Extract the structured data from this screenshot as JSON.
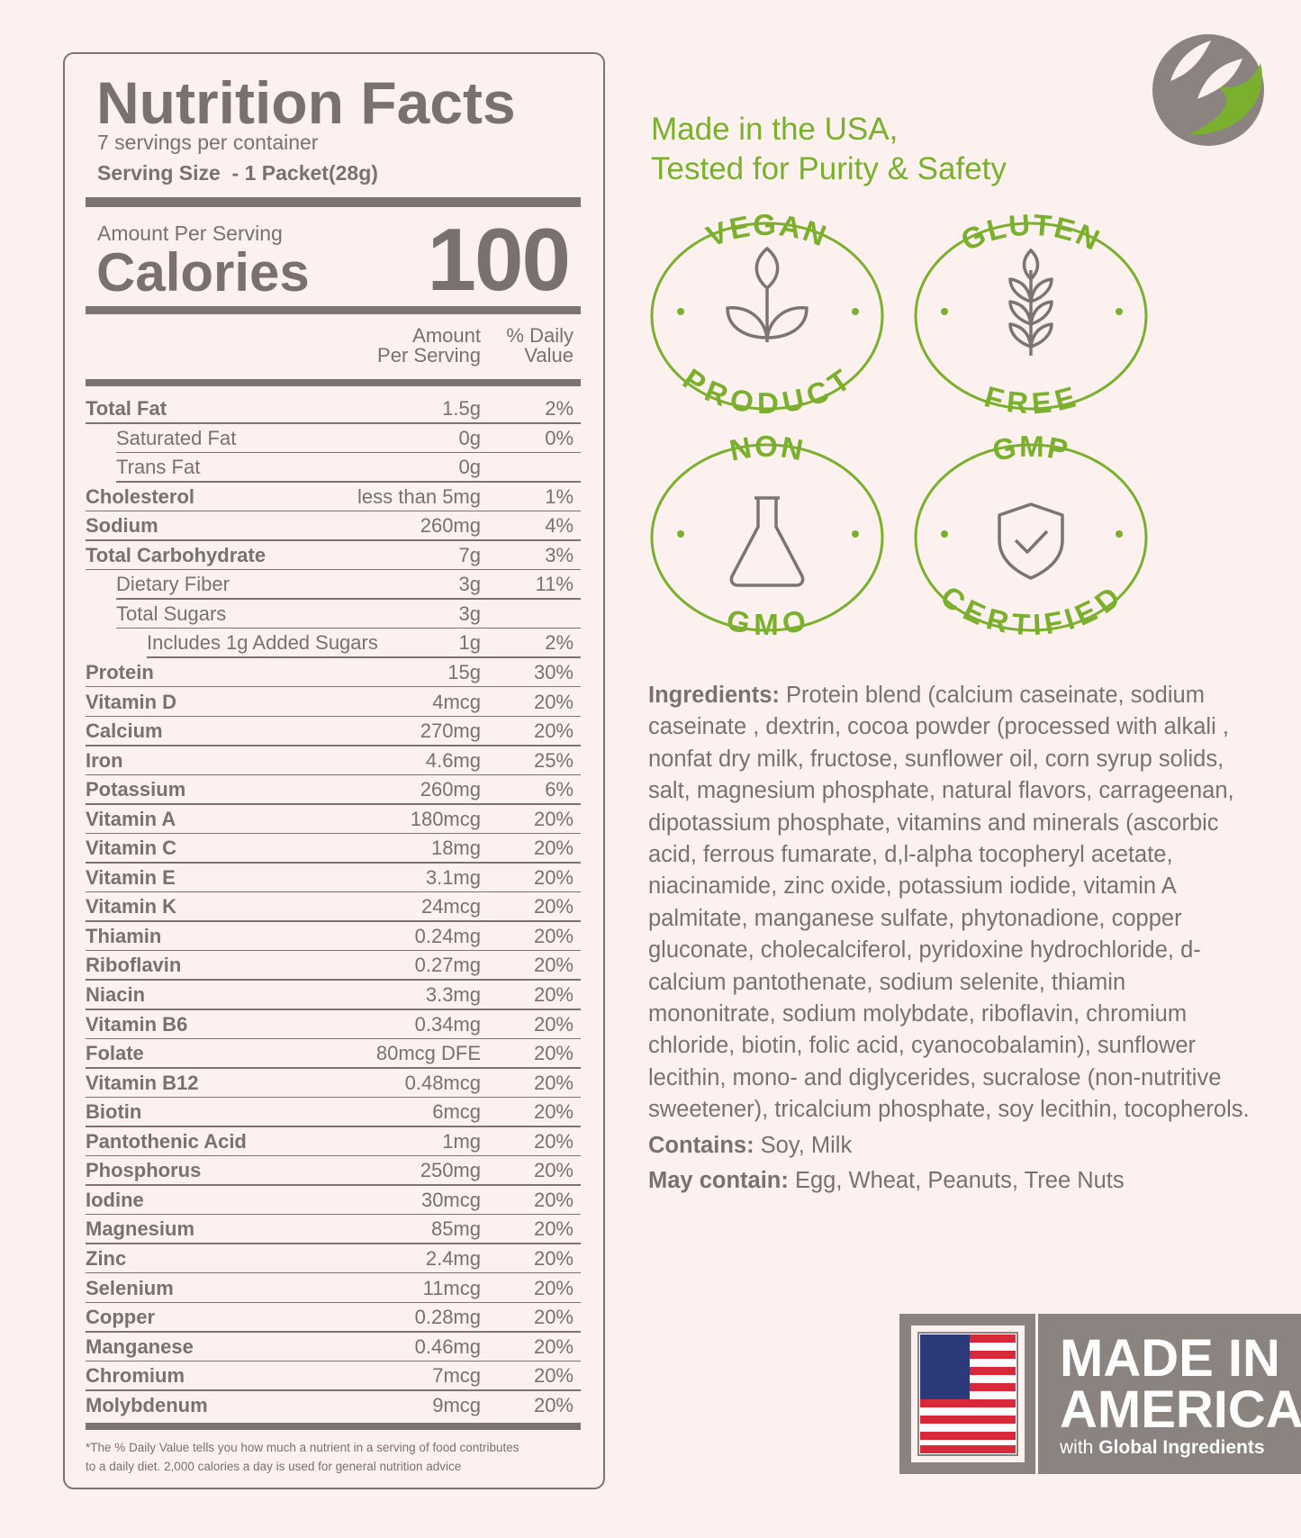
{
  "header": {
    "title": "Nutrition Facts",
    "servings": "7 servings per container",
    "serving_size": "Serving Size  - 1 Packet(28g)",
    "amount_per_serving": "Amount Per Serving",
    "calories_label": "Calories",
    "calories": "100"
  },
  "columns": {
    "amount": [
      "Amount",
      "Per Serving"
    ],
    "dv": [
      "% Daily",
      "Value"
    ]
  },
  "rows": [
    [
      "Total Fat",
      "1.5g",
      "2%"
    ],
    [
      "Saturated Fat",
      "0g",
      "0%"
    ],
    [
      "Trans Fat",
      "0g",
      ""
    ],
    [
      "Cholesterol",
      "less than 5mg",
      "1%"
    ],
    [
      "Sodium",
      "260mg",
      "4%"
    ],
    [
      "Total Carbohydrate",
      "7g",
      "3%"
    ],
    [
      "Dietary Fiber",
      "3g",
      "11%"
    ],
    [
      "Total Sugars",
      "3g",
      ""
    ],
    [
      "Includes 1g Added Sugars",
      "1g",
      "2%"
    ],
    [
      "Protein",
      "15g",
      "30%"
    ],
    [
      "Vitamin D",
      "4mcg",
      "20%"
    ],
    [
      "Calcium",
      "270mg",
      "20%"
    ],
    [
      "Iron",
      "4.6mg",
      "25%"
    ],
    [
      "Potassium",
      "260mg",
      "6%"
    ],
    [
      "Vitamin A",
      "180mcg",
      "20%"
    ],
    [
      "Vitamin C",
      "18mg",
      "20%"
    ],
    [
      "Vitamin E",
      "3.1mg",
      "20%"
    ],
    [
      "Vitamin K",
      "24mcg",
      "20%"
    ],
    [
      "Thiamin",
      "0.24mg",
      "20%"
    ],
    [
      "Riboflavin",
      "0.27mg",
      "20%"
    ],
    [
      "Niacin",
      "3.3mg",
      "20%"
    ],
    [
      "Vitamin B6",
      "0.34mg",
      "20%"
    ],
    [
      "Folate",
      "80mcg DFE",
      "20%"
    ],
    [
      "Vitamin B12",
      "0.48mcg",
      "20%"
    ],
    [
      "Biotin",
      "6mcg",
      "20%"
    ],
    [
      "Pantothenic Acid",
      "1mg",
      "20%"
    ],
    [
      "Phosphorus",
      "250mg",
      "20%"
    ],
    [
      "Iodine",
      "30mcg",
      "20%"
    ],
    [
      "Magnesium",
      "85mg",
      "20%"
    ],
    [
      "Zinc",
      "2.4mg",
      "20%"
    ],
    [
      "Selenium",
      "11mcg",
      "20%"
    ],
    [
      "Copper",
      "0.28mg",
      "20%"
    ],
    [
      "Manganese",
      "0.46mg",
      "20%"
    ],
    [
      "Chromium",
      "7mcg",
      "20%"
    ],
    [
      "Molybdenum",
      "9mcg",
      "20%"
    ]
  ],
  "footnote": [
    "*The % Daily Value tells you how much a nutrient in a serving of food contributes",
    "to a daily diet. 2,000 calories a day is used for general nutrition advice"
  ],
  "headline": [
    "Made in the USA,",
    "Tested for Purity & Safety"
  ],
  "badges": [
    {
      "top": "VEGAN",
      "bottom": "PRODUCT"
    },
    {
      "top": "GLUTEN",
      "bottom": "FREE"
    },
    {
      "top": "NON",
      "bottom": "GMO"
    },
    {
      "top": "GMP",
      "bottom": "CERTIFIED"
    }
  ],
  "ingredients": {
    "label": "Ingredients:",
    "text": "Protein blend (calcium caseinate, sodium caseinate , dextrin, cocoa powder (processed with alkali , nonfat dry milk, fructose, sunflower oil, corn syrup solids, salt, magnesium phosphate, natural flavors, carrageenan, dipotassium phosphate, vitamins and minerals (ascorbic acid, ferrous fumarate, d,l-alpha tocopheryl acetate, niacinamide, zinc oxide, potassium iodide, vitamin A palmitate, manganese sulfate, phytonadione, copper gluconate, cholecalciferol, pyridoxine hydrochloride, d-calcium pantothenate, sodium selenite, thiamin mononitrate, sodium molybdate, riboflavin, chromium chloride, biotin, folic acid, cyanocobalamin), sunflower lecithin, mono- and diglycerides, sucralose (non-nutritive sweetener), tricalcium phosphate, soy lecithin, tocopherols."
  },
  "contains": {
    "label": "Contains:",
    "text": "Soy, Milk"
  },
  "may_contain": {
    "label": "May contain:",
    "text": "Egg, Wheat, Peanuts, Tree Nuts"
  },
  "banner": {
    "line1": "MADE IN",
    "line2": "AMERICA",
    "with": "with",
    "global": "Global Ingredients"
  }
}
